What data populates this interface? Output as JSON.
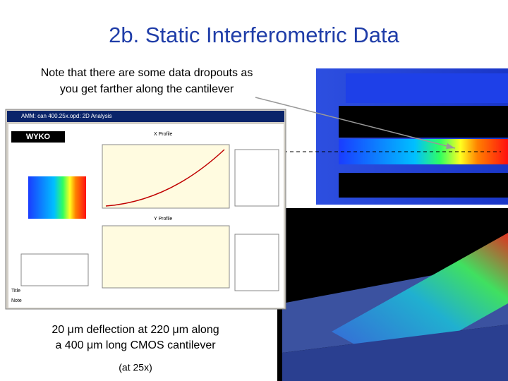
{
  "header": {
    "title": "2b. Static Interferometric Data"
  },
  "note": {
    "lines": [
      "Note that there are some data dropouts as",
      "you get farther along the cantilever"
    ]
  },
  "screenshot": {
    "window_title": "AMM: can 400.25x.opd: 2D Analysis",
    "logo": "WYKO",
    "x_profile": "X Profile",
    "y_profile": "Y Profile",
    "title_label": "Title",
    "note_label": "Note"
  },
  "caption": {
    "lines": [
      "20 μm deflection at 220 μm along",
      "a 400 μm long CMOS cantilever"
    ],
    "magnification": "(at 25x)"
  }
}
